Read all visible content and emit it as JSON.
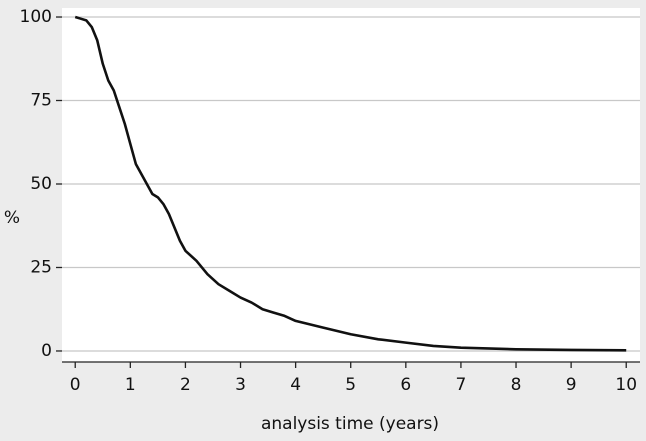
{
  "chart_data": {
    "type": "line",
    "x": [
      0,
      0.1,
      0.2,
      0.3,
      0.4,
      0.5,
      0.6,
      0.7,
      0.8,
      0.9,
      1.0,
      1.1,
      1.2,
      1.3,
      1.4,
      1.5,
      1.6,
      1.7,
      1.8,
      1.9,
      2.0,
      2.2,
      2.4,
      2.6,
      2.8,
      3.0,
      3.2,
      3.4,
      3.6,
      3.8,
      4.0,
      4.5,
      5.0,
      5.5,
      6.0,
      6.5,
      7.0,
      8.0,
      9.0,
      10.0
    ],
    "values": [
      100,
      99.5,
      99,
      97,
      93,
      86,
      81,
      78,
      73,
      68,
      62,
      56,
      53,
      50,
      47,
      46,
      44,
      41,
      37,
      33,
      30,
      27,
      23,
      20,
      18,
      16,
      14.5,
      12.5,
      11.5,
      10.5,
      9,
      7,
      5,
      3.5,
      2.5,
      1.5,
      1,
      0.5,
      0.3,
      0.2
    ],
    "color": "#111111",
    "xlabel": "analysis time (years)",
    "ylabel": "%",
    "xlim": [
      -0.24,
      10.25
    ],
    "xticks": [
      0,
      1,
      2,
      3,
      4,
      5,
      6,
      7,
      8,
      9,
      10
    ],
    "ylim": [
      -3.3,
      102.7
    ],
    "yticks": [
      0,
      25,
      50,
      75,
      100
    ],
    "grid": true
  }
}
